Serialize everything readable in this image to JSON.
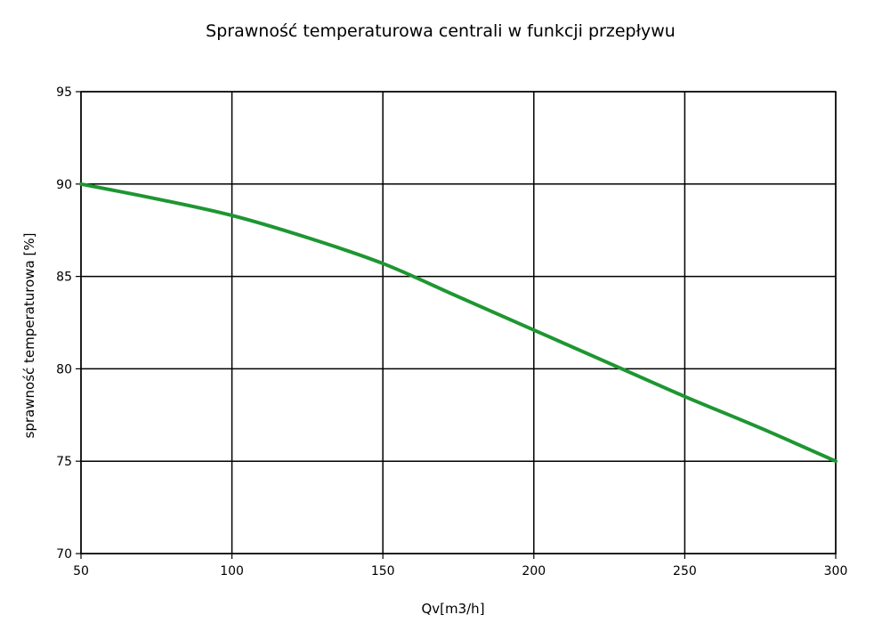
{
  "chart_data": {
    "type": "line",
    "title": "Sprawność temperaturowa centrali w funkcji przepływu",
    "xlabel": "Qv[m3/h]",
    "ylabel": "sprawność temperaturowa [%]",
    "xlim": [
      50,
      300
    ],
    "ylim": [
      70,
      95
    ],
    "xticks": [
      50,
      100,
      150,
      200,
      250,
      300
    ],
    "yticks": [
      70,
      75,
      80,
      85,
      90,
      95
    ],
    "grid": true,
    "legend": "none",
    "series": [
      {
        "color": "#1e9632",
        "x": [
          50,
          75,
          100,
          125,
          150,
          175,
          200,
          225,
          250,
          275,
          300
        ],
        "y": [
          90.0,
          89.2,
          88.3,
          87.1,
          85.7,
          83.9,
          82.1,
          80.3,
          78.5,
          76.8,
          75.0
        ]
      }
    ]
  }
}
